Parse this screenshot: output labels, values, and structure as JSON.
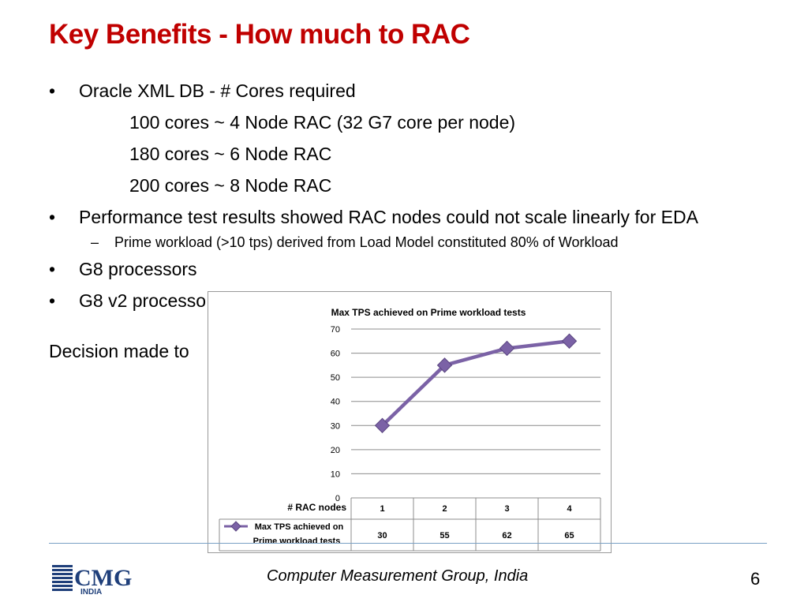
{
  "title": "Key Benefits - How much to RAC",
  "bullets": {
    "b1": "Oracle XML DB - #  Cores required",
    "b1_lines": [
      "100 cores ~ 4 Node RAC  (32 G7 core per node)",
      "180 cores ~ 6 Node RAC",
      "200 cores ~ 8 Node RAC"
    ],
    "b2": "Performance test results showed RAC nodes could not scale linearly for EDA",
    "b2_sub": "Prime workload (>10 tps) derived from Load Model constituted 80% of Workload",
    "b3": "G8 processors",
    "b4": "G8 v2 processo",
    "decision": "Decision made to"
  },
  "chart_data": {
    "type": "line",
    "title": "Max TPS achieved on Prime workload tests",
    "categories": [
      "1",
      "2",
      "3",
      "4"
    ],
    "table_row_label": "# RAC nodes",
    "series": [
      {
        "name": "Max TPS achieved  on Prime workload tests",
        "values": [
          30,
          55,
          62,
          65
        ],
        "color": "#7b62a6"
      }
    ],
    "series_label_lines": [
      "Max TPS achieved  on",
      "Prime workload tests"
    ],
    "ylim": [
      0,
      70
    ],
    "yticks": [
      "0",
      "10",
      "20",
      "30",
      "40",
      "50",
      "60",
      "70"
    ],
    "grid": true,
    "data_table": true
  },
  "footer": {
    "org": "Computer Measurement Group, India",
    "page": "6",
    "logo_text": "CMG",
    "logo_sub": "INDIA",
    "logo_color": "#1f3f7a"
  }
}
